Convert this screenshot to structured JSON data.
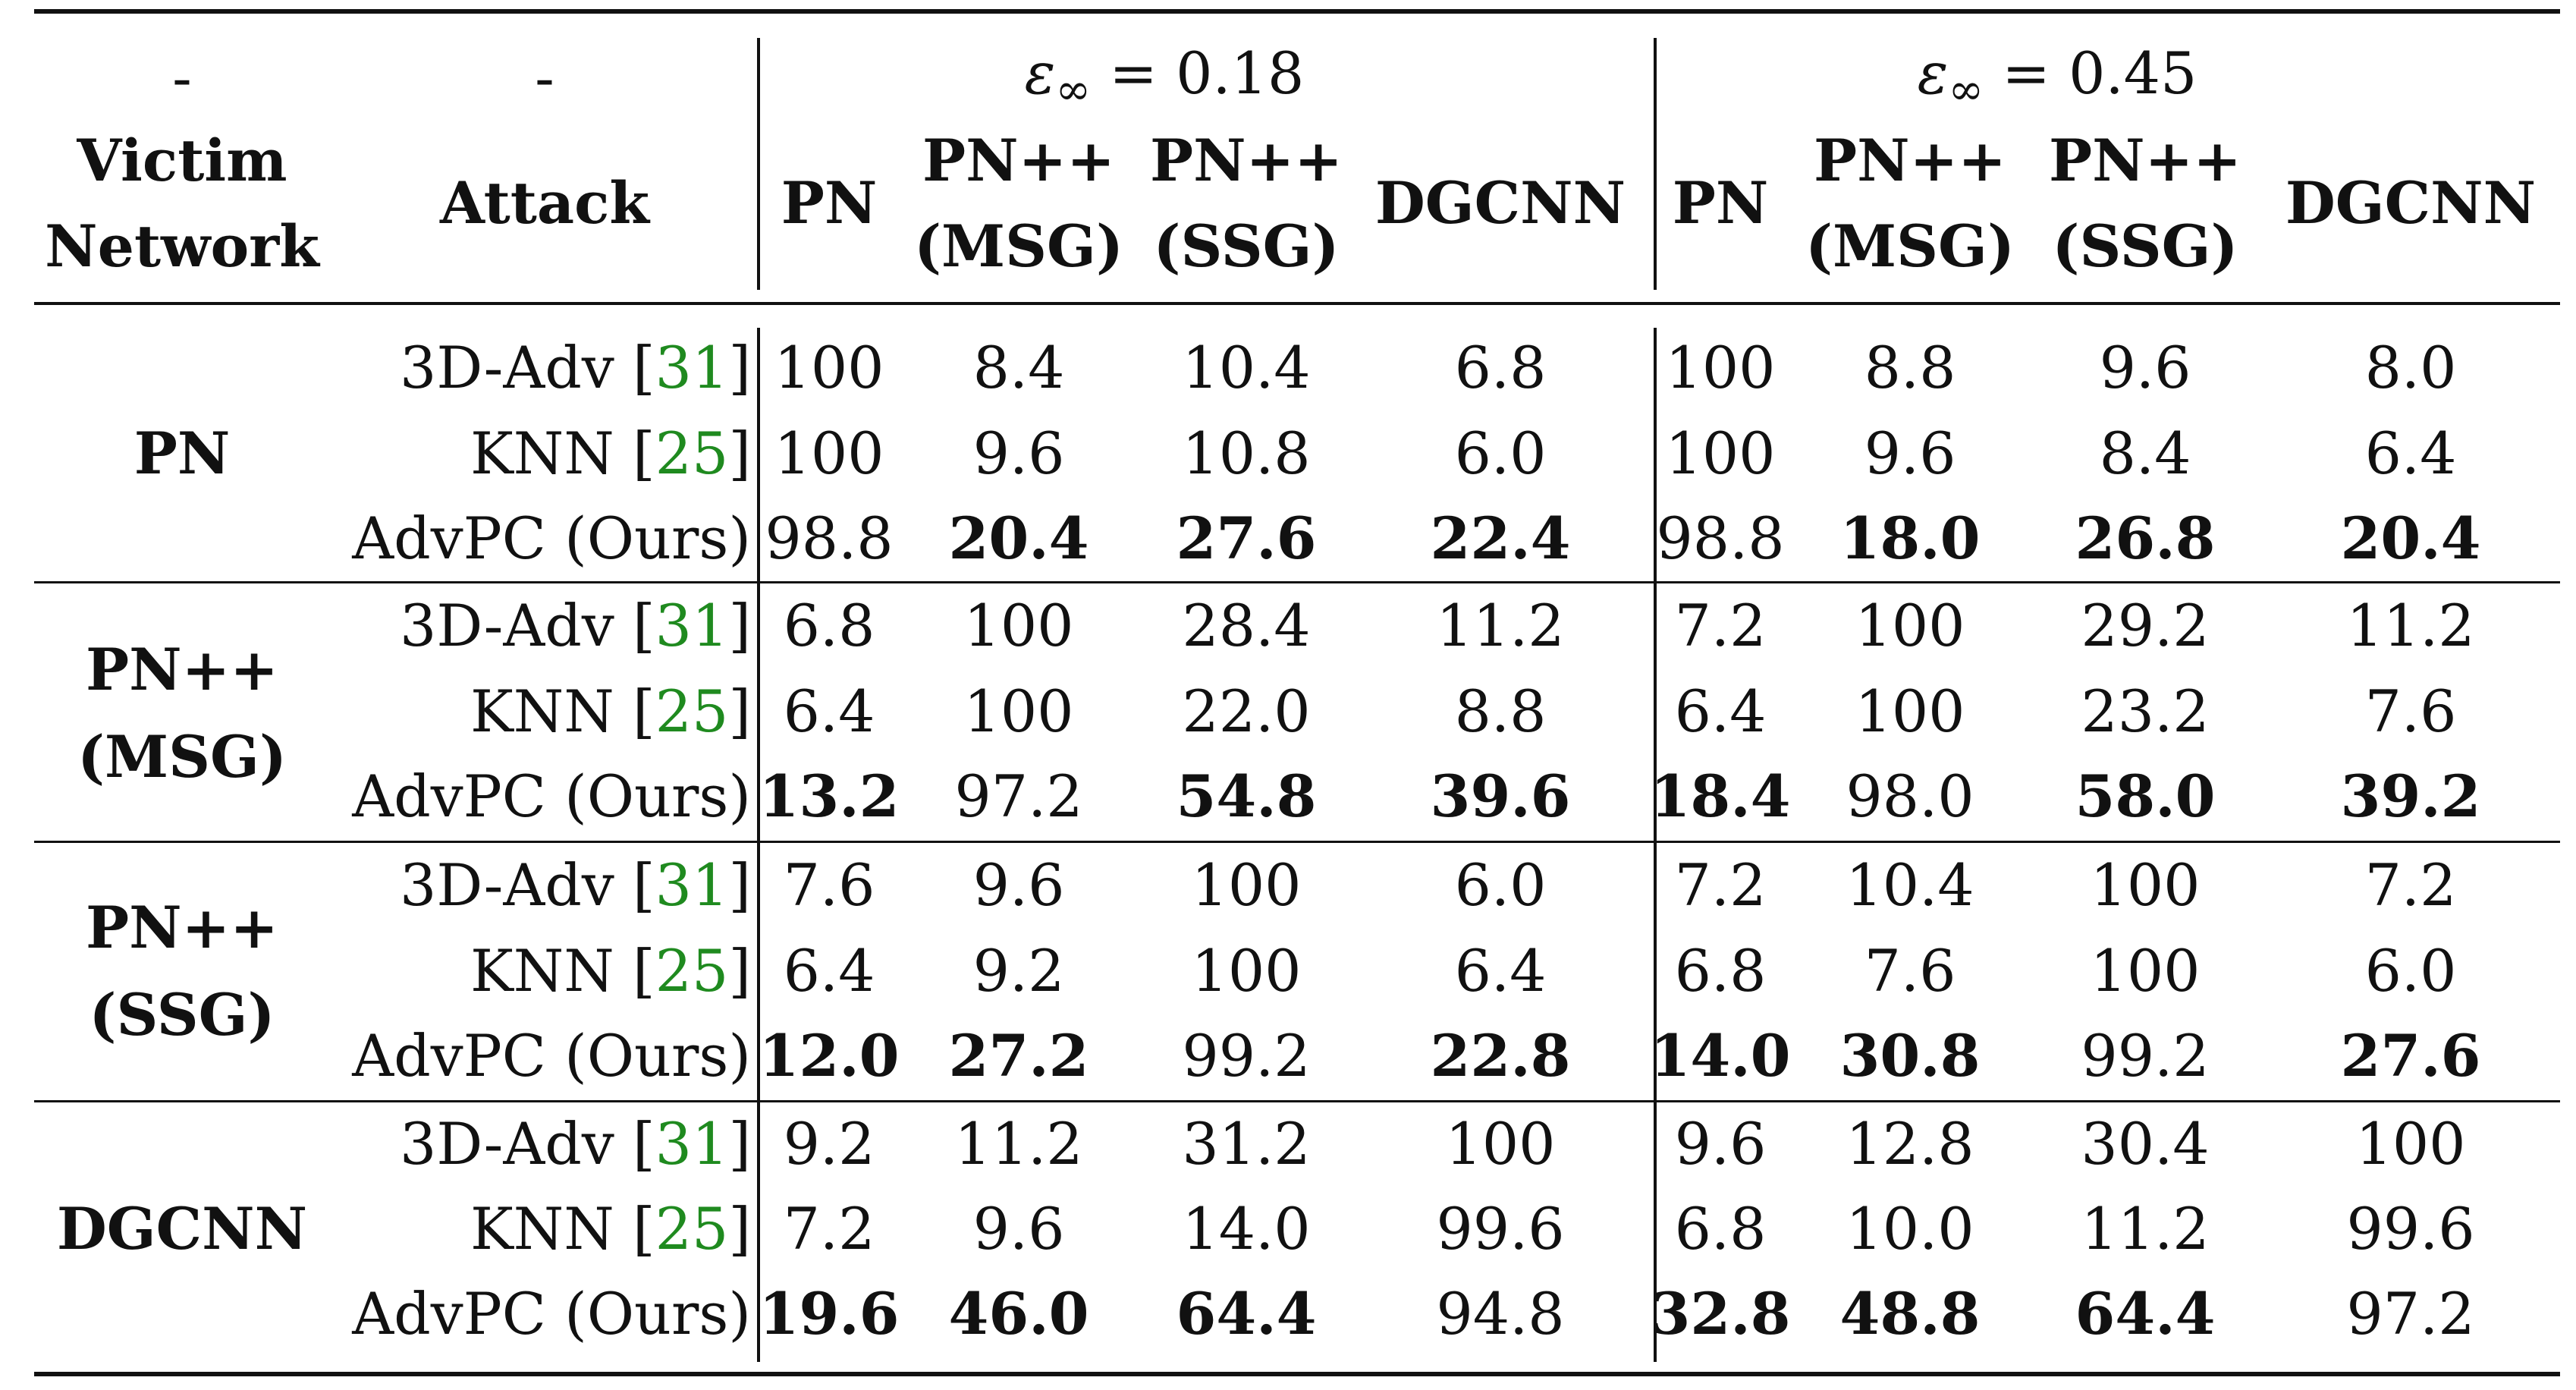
{
  "header": {
    "dash1": "-",
    "dash2": "-",
    "victim": [
      "Victim",
      "Network"
    ],
    "attack": "Attack",
    "eps_symbol": "ε",
    "eps_sub": "∞",
    "groups": [
      " = 0.18",
      " = 0.45"
    ],
    "cols": [
      [
        "PN"
      ],
      [
        "PN++",
        "(MSG)"
      ],
      [
        "PN++",
        "(SSG)"
      ],
      [
        "DGCNN"
      ]
    ]
  },
  "sections": [
    {
      "victim": [
        "PN"
      ],
      "rows": [
        {
          "attack": "3D-Adv [",
          "cite": "31",
          "close": "]",
          "values": [
            "100",
            "8.4",
            "10.4",
            "6.8",
            "100",
            "8.8",
            "9.6",
            "8.0"
          ],
          "bold": [
            false,
            false,
            false,
            false,
            false,
            false,
            false,
            false
          ]
        },
        {
          "attack": "KNN [",
          "cite": "25",
          "close": "]",
          "values": [
            "100",
            "9.6",
            "10.8",
            "6.0",
            "100",
            "9.6",
            "8.4",
            "6.4"
          ],
          "bold": [
            false,
            false,
            false,
            false,
            false,
            false,
            false,
            false
          ]
        },
        {
          "attack": "AdvPC (Ours)",
          "cite": "",
          "close": "",
          "values": [
            "98.8",
            "20.4",
            "27.6",
            "22.4",
            "98.8",
            "18.0",
            "26.8",
            "20.4"
          ],
          "bold": [
            false,
            true,
            true,
            true,
            false,
            true,
            true,
            true
          ]
        }
      ]
    },
    {
      "victim": [
        "PN++",
        "(MSG)"
      ],
      "rows": [
        {
          "attack": "3D-Adv [",
          "cite": "31",
          "close": "]",
          "values": [
            "6.8",
            "100",
            "28.4",
            "11.2",
            "7.2",
            "100",
            "29.2",
            "11.2"
          ],
          "bold": [
            false,
            false,
            false,
            false,
            false,
            false,
            false,
            false
          ]
        },
        {
          "attack": "KNN [",
          "cite": "25",
          "close": "]",
          "values": [
            "6.4",
            "100",
            "22.0",
            "8.8",
            "6.4",
            "100",
            "23.2",
            "7.6"
          ],
          "bold": [
            false,
            false,
            false,
            false,
            false,
            false,
            false,
            false
          ]
        },
        {
          "attack": "AdvPC (Ours)",
          "cite": "",
          "close": "",
          "values": [
            "13.2",
            "97.2",
            "54.8",
            "39.6",
            "18.4",
            "98.0",
            "58.0",
            "39.2"
          ],
          "bold": [
            true,
            false,
            true,
            true,
            true,
            false,
            true,
            true
          ]
        }
      ]
    },
    {
      "victim": [
        "PN++",
        "(SSG)"
      ],
      "rows": [
        {
          "attack": "3D-Adv [",
          "cite": "31",
          "close": "]",
          "values": [
            "7.6",
            "9.6",
            "100",
            "6.0",
            "7.2",
            "10.4",
            "100",
            "7.2"
          ],
          "bold": [
            false,
            false,
            false,
            false,
            false,
            false,
            false,
            false
          ]
        },
        {
          "attack": "KNN [",
          "cite": "25",
          "close": "]",
          "values": [
            "6.4",
            "9.2",
            "100",
            "6.4",
            "6.8",
            "7.6",
            "100",
            "6.0"
          ],
          "bold": [
            false,
            false,
            false,
            false,
            false,
            false,
            false,
            false
          ]
        },
        {
          "attack": "AdvPC (Ours)",
          "cite": "",
          "close": "",
          "values": [
            "12.0",
            "27.2",
            "99.2",
            "22.8",
            "14.0",
            "30.8",
            "99.2",
            "27.6"
          ],
          "bold": [
            true,
            true,
            false,
            true,
            true,
            true,
            false,
            true
          ]
        }
      ]
    },
    {
      "victim": [
        "DGCNN"
      ],
      "rows": [
        {
          "attack": "3D-Adv [",
          "cite": "31",
          "close": "]",
          "values": [
            "9.2",
            "11.2",
            "31.2",
            "100",
            "9.6",
            "12.8",
            "30.4",
            "100"
          ],
          "bold": [
            false,
            false,
            false,
            false,
            false,
            false,
            false,
            false
          ]
        },
        {
          "attack": "KNN [",
          "cite": "25",
          "close": "]",
          "values": [
            "7.2",
            "9.6",
            "14.0",
            "99.6",
            "6.8",
            "10.0",
            "11.2",
            "99.6"
          ],
          "bold": [
            false,
            false,
            false,
            false,
            false,
            false,
            false,
            false
          ]
        },
        {
          "attack": "AdvPC (Ours)",
          "cite": "",
          "close": "",
          "values": [
            "19.6",
            "46.0",
            "64.4",
            "94.8",
            "32.8",
            "48.8",
            "64.4",
            "97.2"
          ],
          "bold": [
            true,
            true,
            true,
            false,
            true,
            true,
            true,
            false
          ]
        }
      ]
    }
  ]
}
